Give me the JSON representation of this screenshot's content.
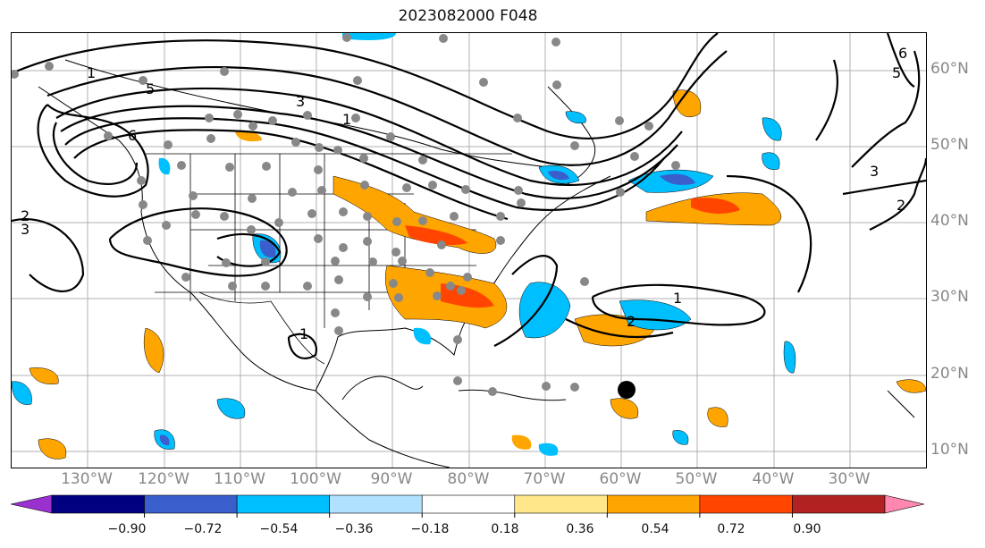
{
  "title": "2023082000 F048",
  "lat_labels": [
    "60°N",
    "50°N",
    "40°N",
    "30°N",
    "20°N",
    "10°N"
  ],
  "lon_labels": [
    "130°W",
    "120°W",
    "110°W",
    "100°W",
    "90°W",
    "80°W",
    "70°W",
    "60°W",
    "50°W",
    "40°W",
    "30°W"
  ],
  "colorbar": {
    "ticks": [
      "−0.90",
      "−0.72",
      "−0.54",
      "−0.36",
      "−0.18",
      "0.18",
      "0.36",
      "0.54",
      "0.72",
      "0.90"
    ],
    "colors": [
      "#9b30d0",
      "#000080",
      "#3a5fcd",
      "#00bfff",
      "#b0e2ff",
      "#ffffff",
      "#ffe78a",
      "#ffa500",
      "#ff4500",
      "#b22222",
      "#ff88b0"
    ]
  },
  "contour_labels": [
    "1",
    "2",
    "3",
    "5",
    "6",
    "1",
    "3",
    "2",
    "1",
    "2",
    "3",
    "5",
    "6",
    "1"
  ],
  "colors": {
    "positive": "#ffa500",
    "strong_positive": "#ff4500",
    "negative": "#00bfff",
    "strong_negative": "#3a5fcd",
    "station": "#888888",
    "contour": "#000000",
    "grid": "#b0b0b0"
  },
  "marker_icon": "black-circle"
}
